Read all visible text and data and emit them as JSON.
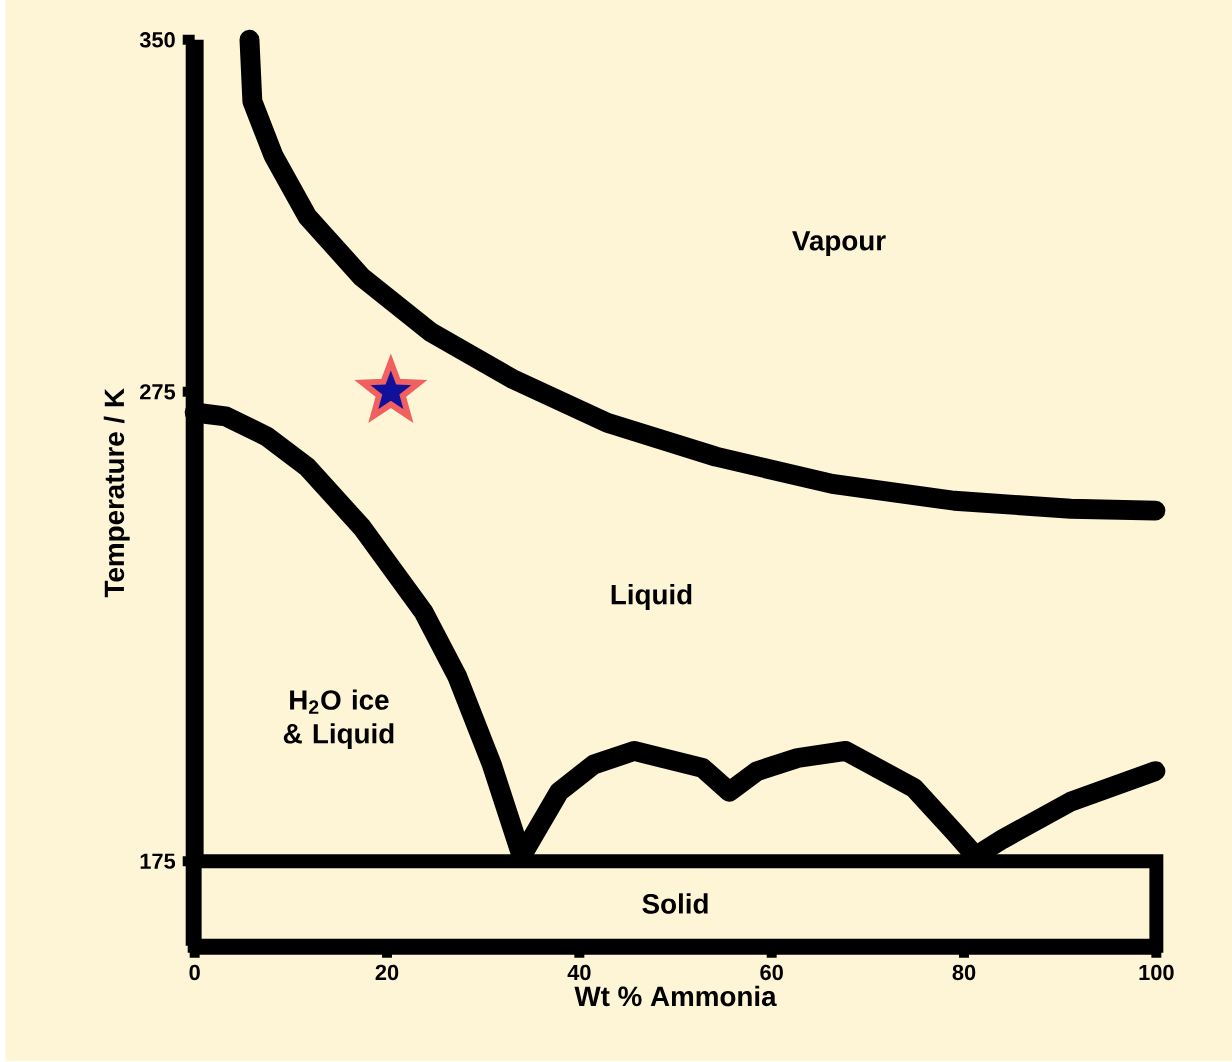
{
  "chart_data": {
    "type": "line",
    "xlabel": "Wt % Ammonia",
    "ylabel": "Temperature / K",
    "xlim": [
      0,
      100
    ],
    "ylim": [
      157,
      350
    ],
    "xticks": [
      0,
      20,
      40,
      60,
      80,
      100
    ],
    "yticks": [
      175,
      275,
      350
    ],
    "grid": false,
    "series": [
      {
        "color": "#000000",
        "x": [
          5.7,
          6.0,
          8.2,
          11.7,
          17.4,
          24.5,
          33.0,
          42.9,
          54.2,
          66.3,
          79.0,
          91.1,
          99.9
        ],
        "values": [
          350,
          336.9,
          325.3,
          312.4,
          299.4,
          287.8,
          277.8,
          268.4,
          261.2,
          255.4,
          251.8,
          250.1,
          249.7
        ]
      },
      {
        "color": "#000000",
        "x": [
          0,
          3.2,
          7.5,
          11.7,
          17.4,
          23.8,
          27.3,
          30.9,
          34.0,
          37.9,
          41.5,
          45.7,
          52.8,
          55.6,
          58.5,
          62.7,
          67.7,
          74.8,
          79.0,
          81.2,
          84.0,
          91.1,
          99.9
        ],
        "values": [
          270.6,
          269.8,
          265.5,
          259.0,
          246.1,
          228.1,
          214.4,
          195.6,
          176.1,
          189.8,
          195.6,
          198.5,
          194.9,
          189.8,
          194.2,
          197.0,
          198.5,
          190.6,
          181.2,
          176.1,
          179.7,
          187.7,
          194.2
        ]
      },
      {
        "type": "scatter",
        "marker": "star",
        "color": "#10109a",
        "x": [
          20.4
        ],
        "values": [
          275
        ]
      }
    ],
    "bands": [
      {
        "axis": "y",
        "from": 157,
        "to": 175,
        "label": "Solid",
        "color": "#fdf5d6"
      }
    ],
    "annotations": [
      "Vapour",
      "Liquid",
      "H$_{2}$O ice & Liquid"
    ]
  }
}
